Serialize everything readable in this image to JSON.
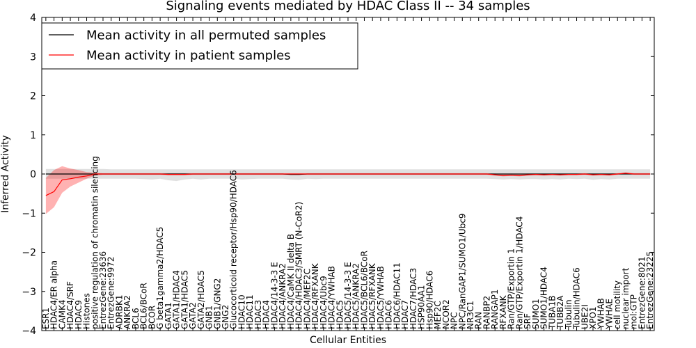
{
  "chart_data": {
    "type": "line",
    "title": "Signaling events mediated by HDAC Class II -- 34 samples",
    "xlabel": "Cellular Entities",
    "ylabel": "Inferred Activity",
    "ylim": [
      -4,
      4
    ],
    "yticks": [
      -4,
      -3,
      -2,
      -1,
      0,
      1,
      2,
      3,
      4
    ],
    "legend_position": "top-left",
    "categories": [
      "ESR1",
      "HDAC4/ER alpha",
      "CAMK4",
      "HDAC4/SRF",
      "HDAC9",
      "Histones",
      "positive regulation of chromatin silencing",
      "EntrezGene:23636",
      "EntrezGene:9972",
      "ADRBK1",
      "ANKRA2",
      "BCL6",
      "BCL6/BCoR",
      "BCOR",
      "G beta1gamma2/HDAC5",
      "GATA1",
      "GATA1/HDAC4",
      "GATA1/HDAC5",
      "GATA2",
      "GATA2/HDAC5",
      "GNB1",
      "GNB1/GNG2",
      "GNG2",
      "Glucocorticoid receptor/Hsp90/HDAC6",
      "HDAC10",
      "HDAC11",
      "HDAC3",
      "HDAC4",
      "HDAC4/14-3-3 E",
      "HDAC4/ANKRA2",
      "HDAC4/CaMK II delta B",
      "HDAC4/HDAC3/SMRT (N-CoR2)",
      "HDAC4/MEF2C",
      "HDAC4/RFXANK",
      "HDAC4/Ubc9",
      "HDAC4/YWHAB",
      "HDAC5",
      "HDAC5/14-3-3 E",
      "HDAC5/ANKRA2",
      "HDAC5/BCL6/BCoR",
      "HDAC5/RFXANK",
      "HDAC5/YWHAB",
      "HDAC6",
      "HDAC6/HDAC11",
      "HDAC7",
      "HDAC7/HDAC3",
      "HSP90AA1",
      "Hsp90/HDAC6",
      "MEF2C",
      "NCOR2",
      "NPC",
      "NPC/RanGAP1/SUMO1/Ubc9",
      "NR3C1",
      "RAN",
      "RANBP2",
      "RANGAP1",
      "RFXANK",
      "Ran/GTP/Exportin 1",
      "Ran/GTP/Exportin 1/HDAC4",
      "SRF",
      "SUMO1",
      "SUMO1/HDAC4",
      "TUBA1B",
      "TUBB2A",
      "Tubulin",
      "Tubulin/HDAC6",
      "UBE2I",
      "XPO1",
      "YWHAB",
      "YWHAE",
      "cell motility",
      "nuclear import",
      "mol:GTP",
      "EntrezGene:8021",
      "EntrezGene:23225"
    ],
    "series": [
      {
        "name": "Mean activity in all permuted samples",
        "color": "#000000",
        "values": [
          0,
          0,
          0,
          0,
          0,
          0,
          0,
          0,
          0,
          0,
          0,
          0,
          0,
          0,
          0,
          0,
          0,
          0,
          0,
          0,
          0,
          0,
          0,
          0,
          0,
          0,
          0,
          0,
          0,
          0,
          -0.01,
          -0.01,
          0,
          0,
          0,
          0,
          0,
          0,
          0,
          0,
          0,
          0,
          0,
          0,
          0,
          0,
          0,
          0,
          0,
          0,
          0,
          0,
          0,
          0,
          0,
          0,
          0,
          0,
          0,
          0,
          0,
          0,
          0,
          0,
          0,
          0,
          0,
          0,
          0,
          0,
          0,
          0,
          0,
          0,
          0
        ],
        "band_low": [
          -0.12,
          -0.12,
          -0.12,
          -0.12,
          -0.12,
          -0.12,
          -0.12,
          -0.12,
          -0.12,
          -0.12,
          -0.12,
          -0.12,
          -0.13,
          -0.14,
          -0.12,
          -0.16,
          -0.18,
          -0.14,
          -0.12,
          -0.14,
          -0.12,
          -0.12,
          -0.12,
          -0.12,
          -0.14,
          -0.13,
          -0.12,
          -0.12,
          -0.12,
          -0.12,
          -0.14,
          -0.15,
          -0.12,
          -0.13,
          -0.12,
          -0.12,
          -0.12,
          -0.12,
          -0.12,
          -0.12,
          -0.12,
          -0.12,
          -0.12,
          -0.12,
          -0.12,
          -0.12,
          -0.12,
          -0.12,
          -0.12,
          -0.12,
          -0.12,
          -0.12,
          -0.12,
          -0.12,
          -0.12,
          -0.13,
          -0.14,
          -0.13,
          -0.14,
          -0.13,
          -0.13,
          -0.14,
          -0.13,
          -0.14,
          -0.12,
          -0.13,
          -0.12,
          -0.15,
          -0.13,
          -0.14,
          -0.12,
          -0.12,
          -0.12,
          -0.12,
          -0.12
        ],
        "band_high": [
          0.13,
          0.13,
          0.13,
          0.13,
          0.13,
          0.13,
          0.13,
          0.13,
          0.12,
          0.12,
          0.12,
          0.12,
          0.12,
          0.12,
          0.12,
          0.12,
          0.12,
          0.12,
          0.12,
          0.12,
          0.12,
          0.12,
          0.12,
          0.12,
          0.12,
          0.12,
          0.12,
          0.12,
          0.12,
          0.12,
          0.12,
          0.12,
          0.12,
          0.12,
          0.12,
          0.12,
          0.12,
          0.12,
          0.12,
          0.12,
          0.12,
          0.12,
          0.12,
          0.12,
          0.12,
          0.12,
          0.12,
          0.12,
          0.12,
          0.12,
          0.12,
          0.12,
          0.12,
          0.12,
          0.12,
          0.12,
          0.12,
          0.12,
          0.12,
          0.12,
          0.12,
          0.12,
          0.12,
          0.12,
          0.12,
          0.12,
          0.12,
          0.12,
          0.12,
          0.12,
          0.12,
          0.12,
          0.12,
          0.12,
          0.12
        ]
      },
      {
        "name": "Mean activity in patient samples",
        "color": "#ff0000",
        "values": [
          -0.55,
          -0.45,
          -0.15,
          -0.12,
          -0.08,
          -0.05,
          0,
          0,
          0,
          0,
          0,
          0,
          0,
          0,
          0,
          -0.01,
          -0.01,
          -0.01,
          0,
          0,
          0,
          0,
          0,
          0,
          0,
          0,
          0,
          0,
          0,
          0,
          0,
          0,
          0,
          0,
          0,
          0,
          0,
          0,
          0,
          0,
          0,
          0,
          0,
          0,
          0,
          0,
          0,
          0,
          0,
          0,
          0,
          0,
          0,
          0,
          0,
          -0.02,
          -0.04,
          -0.03,
          -0.04,
          -0.02,
          -0.01,
          -0.02,
          -0.01,
          -0.02,
          -0.01,
          -0.01,
          0,
          -0.02,
          -0.01,
          -0.02,
          0,
          0.02,
          0,
          0,
          0
        ],
        "band_low": [
          -1.02,
          -0.85,
          -0.48,
          -0.32,
          -0.22,
          -0.12,
          -0.04,
          -0.02,
          -0.02,
          -0.02,
          -0.02,
          -0.02,
          -0.02,
          -0.02,
          -0.02,
          -0.03,
          -0.03,
          -0.03,
          -0.02,
          -0.02,
          -0.02,
          -0.02,
          -0.02,
          -0.02,
          -0.02,
          -0.02,
          -0.02,
          -0.02,
          -0.02,
          -0.02,
          -0.02,
          -0.02,
          -0.02,
          -0.02,
          -0.02,
          -0.02,
          -0.02,
          -0.02,
          -0.02,
          -0.02,
          -0.02,
          -0.02,
          -0.02,
          -0.02,
          -0.02,
          -0.02,
          -0.02,
          -0.02,
          -0.02,
          -0.02,
          -0.02,
          -0.02,
          -0.02,
          -0.02,
          -0.02,
          -0.04,
          -0.06,
          -0.05,
          -0.06,
          -0.04,
          -0.03,
          -0.04,
          -0.03,
          -0.04,
          -0.03,
          -0.03,
          -0.02,
          -0.04,
          -0.03,
          -0.04,
          -0.02,
          0,
          -0.02,
          -0.02,
          -0.02
        ],
        "band_high": [
          -0.1,
          0.1,
          0.2,
          0.14,
          0.1,
          0.05,
          0.03,
          0.02,
          0.02,
          0.02,
          0.02,
          0.02,
          0.02,
          0.02,
          0.02,
          0.02,
          0.02,
          0.02,
          0.02,
          0.02,
          0.02,
          0.02,
          0.02,
          0.02,
          0.02,
          0.02,
          0.02,
          0.02,
          0.02,
          0.02,
          0.02,
          0.02,
          0.02,
          0.02,
          0.02,
          0.02,
          0.02,
          0.02,
          0.02,
          0.02,
          0.02,
          0.02,
          0.02,
          0.02,
          0.02,
          0.02,
          0.02,
          0.02,
          0.02,
          0.02,
          0.02,
          0.02,
          0.02,
          0.02,
          0.02,
          0.01,
          0,
          0.01,
          0,
          0.01,
          0.01,
          0.01,
          0.01,
          0.01,
          0.01,
          0.01,
          0.02,
          0.01,
          0.01,
          0.01,
          0.02,
          0.04,
          0.02,
          0.02,
          0.02
        ]
      }
    ]
  }
}
